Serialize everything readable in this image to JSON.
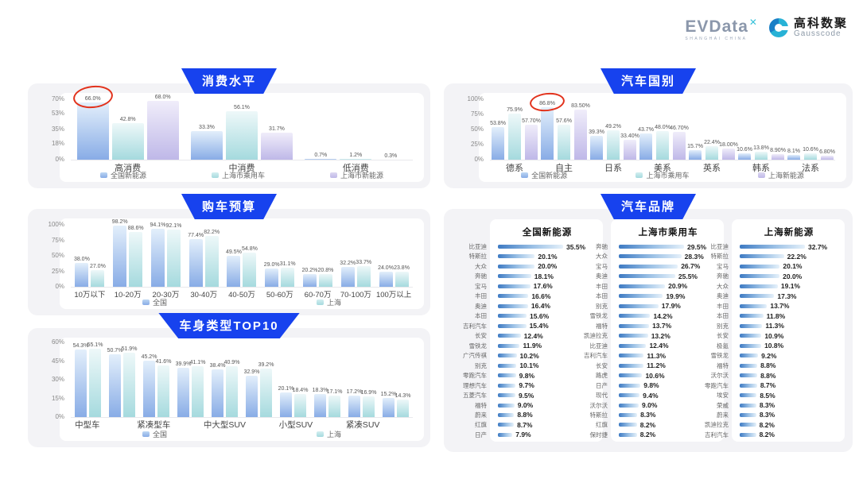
{
  "logo": {
    "evdata_text": "EVData",
    "evdata_mark": "✕",
    "evdata_sub": "SHANGHAI CHINA",
    "gausscode_cn": "高科数聚",
    "gausscode_en": "Gausscode"
  },
  "colors": {
    "banner_blue": "#1742ee",
    "series_blue": "#88ace6",
    "series_teal": "#a5dade",
    "series_purple": "#bfb8e8",
    "brand_bar_blue": "#3d7ac3",
    "annotation_red": "#e2321c",
    "panel_gray": "#f3f3f6"
  },
  "chart_data": [
    {
      "id": "consumption",
      "type": "bar",
      "title": "消费水平",
      "categories": [
        "高消费",
        "中消费",
        "低消费"
      ],
      "series": [
        {
          "name": "全国新能源",
          "color": "blue",
          "values": [
            66.0,
            33.3,
            0.7
          ],
          "labels": [
            "66.0%",
            "33.3%",
            "0.7%"
          ]
        },
        {
          "name": "上海市乘用车",
          "color": "teal",
          "values": [
            42.8,
            56.1,
            1.2
          ],
          "labels": [
            "42.8%",
            "56.1%",
            "1.2%"
          ]
        },
        {
          "name": "上海市新能源",
          "color": "purple",
          "values": [
            68.0,
            31.7,
            0.3
          ],
          "labels": [
            "68.0%",
            "31.7%",
            "0.3%"
          ]
        }
      ],
      "ymax": 70,
      "yticks": [
        {
          "v": 0,
          "label": "0%"
        },
        {
          "v": 18,
          "label": "18%"
        },
        {
          "v": 35,
          "label": "35%"
        },
        {
          "v": 53,
          "label": "53%"
        },
        {
          "v": 70,
          "label": "70%"
        }
      ],
      "grid": false,
      "legend_position": "bottom",
      "annotation": {
        "series": 0,
        "category": 0,
        "shape": "red-circle",
        "around_label": "66.0%"
      }
    },
    {
      "id": "budget",
      "type": "bar",
      "title": "购车预算",
      "categories": [
        "10万以下",
        "10-20万",
        "20-30万",
        "30-40万",
        "40-50万",
        "50-60万",
        "60-70万",
        "70-100万",
        "100万以上"
      ],
      "series": [
        {
          "name": "全国",
          "color": "blue",
          "values": [
            38.0,
            98.2,
            94.1,
            77.4,
            49.5,
            29.0,
            20.2,
            32.2,
            24.0
          ],
          "labels": [
            "38.0%",
            "98.2%",
            "94.1%",
            "77.4%",
            "49.5%",
            "29.0%",
            "20.2%",
            "32.2%",
            "24.0%"
          ]
        },
        {
          "name": "上海",
          "color": "teal",
          "values": [
            27.0,
            88.6,
            92.1,
            82.2,
            54.8,
            31.1,
            20.8,
            33.7,
            23.8
          ],
          "labels": [
            "27.0%",
            "88.6%",
            "92.1%",
            "82.2%",
            "54.8%",
            "31.1%",
            "20.8%",
            "33.7%",
            "23.8%"
          ]
        }
      ],
      "ymax": 100,
      "yticks": [
        {
          "v": 0,
          "label": "0%"
        },
        {
          "v": 25,
          "label": "25%"
        },
        {
          "v": 50,
          "label": "50%"
        },
        {
          "v": 75,
          "label": "75%"
        },
        {
          "v": 100,
          "label": "100%"
        }
      ],
      "grid": false,
      "legend_position": "bottom"
    },
    {
      "id": "bodytype",
      "type": "bar",
      "title": "车身类型TOP10",
      "categories": [
        "中型车",
        "",
        "紧凑型车",
        "",
        "中大型SUV",
        "",
        "小型SUV",
        "",
        "紧凑SUV",
        ""
      ],
      "series": [
        {
          "name": "全国",
          "color": "blue",
          "values": [
            54.3,
            50.7,
            45.2,
            39.9,
            38.4,
            32.9,
            20.1,
            18.3,
            17.2,
            15.2
          ],
          "labels": [
            "54.3%",
            "50.7%",
            "45.2%",
            "39.9%",
            "38.4%",
            "32.9%",
            "20.1%",
            "18.3%",
            "17.2%",
            "15.2%"
          ]
        },
        {
          "name": "上海",
          "color": "teal",
          "values": [
            55.1,
            51.9,
            41.6,
            41.1,
            40.9,
            39.2,
            18.4,
            17.1,
            16.9,
            14.3
          ],
          "labels": [
            "55.1%",
            "51.9%",
            "41.6%",
            "41.1%",
            "40.9%",
            "39.2%",
            "18.4%",
            "17.1%",
            "16.9%",
            "14.3%"
          ]
        }
      ],
      "ymax": 60,
      "yticks": [
        {
          "v": 0,
          "label": "0%"
        },
        {
          "v": 15,
          "label": "15%"
        },
        {
          "v": 30,
          "label": "30%"
        },
        {
          "v": 45,
          "label": "45%"
        },
        {
          "v": 60,
          "label": "60%"
        }
      ],
      "grid": false,
      "legend_position": "bottom"
    },
    {
      "id": "country",
      "type": "bar",
      "title": "汽车国别",
      "categories": [
        "德系",
        "自主",
        "日系",
        "美系",
        "英系",
        "韩系",
        "法系"
      ],
      "series": [
        {
          "name": "全国新能源",
          "color": "blue",
          "values": [
            53.8,
            86.8,
            39.3,
            43.7,
            15.7,
            10.6,
            8.1
          ],
          "labels": [
            "53.8%",
            "86.8%",
            "39.3%",
            "43.7%",
            "15.7%",
            "10.6%",
            "8.1%"
          ]
        },
        {
          "name": "上海市乘用车",
          "color": "teal",
          "values": [
            75.9,
            57.6,
            49.2,
            48.0,
            22.4,
            13.8,
            10.6
          ],
          "labels": [
            "75.9%",
            "57.6%",
            "49.2%",
            "48.0%",
            "22.4%",
            "13.8%",
            "10.6%"
          ]
        },
        {
          "name": "上海新能源",
          "color": "purple",
          "values": [
            57.7,
            83.5,
            33.4,
            46.7,
            18.0,
            8.9,
            6.8
          ],
          "labels": [
            "57.70%",
            "83.50%",
            "33.40%",
            "46.70%",
            "18.00%",
            "8.90%",
            "6.80%"
          ]
        }
      ],
      "ymax": 100,
      "yticks": [
        {
          "v": 0,
          "label": "0%"
        },
        {
          "v": 25,
          "label": "25%"
        },
        {
          "v": 50,
          "label": "50%"
        },
        {
          "v": 75,
          "label": "75%"
        },
        {
          "v": 100,
          "label": "100%"
        }
      ],
      "grid": false,
      "legend_position": "bottom",
      "annotation": {
        "series": 0,
        "category": 1,
        "shape": "red-circle",
        "around_label": "86.8%"
      }
    },
    {
      "id": "brands",
      "type": "hbar-list",
      "title": "汽车品牌",
      "lists": [
        {
          "title": "全国新能源",
          "items": [
            {
              "name": "比亚迪",
              "value": 35.5,
              "label": "35.5%"
            },
            {
              "name": "特斯拉",
              "value": 20.1,
              "label": "20.1%"
            },
            {
              "name": "大众",
              "value": 20.0,
              "label": "20.0%"
            },
            {
              "name": "奔驰",
              "value": 18.1,
              "label": "18.1%"
            },
            {
              "name": "宝马",
              "value": 17.6,
              "label": "17.6%"
            },
            {
              "name": "丰田",
              "value": 16.6,
              "label": "16.6%"
            },
            {
              "name": "奥迪",
              "value": 16.4,
              "label": "16.4%"
            },
            {
              "name": "本田",
              "value": 15.6,
              "label": "15.6%"
            },
            {
              "name": "吉利汽车",
              "value": 15.4,
              "label": "15.4%"
            },
            {
              "name": "长安",
              "value": 12.4,
              "label": "12.4%"
            },
            {
              "name": "雪铁龙",
              "value": 11.9,
              "label": "11.9%"
            },
            {
              "name": "广汽传祺",
              "value": 10.2,
              "label": "10.2%"
            },
            {
              "name": "别克",
              "value": 10.1,
              "label": "10.1%"
            },
            {
              "name": "零跑汽车",
              "value": 9.8,
              "label": "9.8%"
            },
            {
              "name": "理想汽车",
              "value": 9.7,
              "label": "9.7%"
            },
            {
              "name": "五菱汽车",
              "value": 9.5,
              "label": "9.5%"
            },
            {
              "name": "福特",
              "value": 9.0,
              "label": "9.0%"
            },
            {
              "name": "蔚来",
              "value": 8.8,
              "label": "8.8%"
            },
            {
              "name": "红旗",
              "value": 8.7,
              "label": "8.7%"
            },
            {
              "name": "日产",
              "value": 7.9,
              "label": "7.9%"
            }
          ]
        },
        {
          "title": "上海市乘用车",
          "items": [
            {
              "name": "奔驰",
              "value": 29.5,
              "label": "29.5%"
            },
            {
              "name": "大众",
              "value": 28.3,
              "label": "28.3%"
            },
            {
              "name": "宝马",
              "value": 26.7,
              "label": "26.7%"
            },
            {
              "name": "奥迪",
              "value": 25.5,
              "label": "25.5%"
            },
            {
              "name": "丰田",
              "value": 20.9,
              "label": "20.9%"
            },
            {
              "name": "本田",
              "value": 19.9,
              "label": "19.9%"
            },
            {
              "name": "别克",
              "value": 17.9,
              "label": "17.9%"
            },
            {
              "name": "雪铁龙",
              "value": 14.2,
              "label": "14.2%"
            },
            {
              "name": "福特",
              "value": 13.7,
              "label": "13.7%"
            },
            {
              "name": "凯迪拉克",
              "value": 13.2,
              "label": "13.2%"
            },
            {
              "name": "比亚迪",
              "value": 12.4,
              "label": "12.4%"
            },
            {
              "name": "吉利汽车",
              "value": 11.3,
              "label": "11.3%"
            },
            {
              "name": "长安",
              "value": 11.2,
              "label": "11.2%"
            },
            {
              "name": "路虎",
              "value": 10.6,
              "label": "10.6%"
            },
            {
              "name": "日产",
              "value": 9.8,
              "label": "9.8%"
            },
            {
              "name": "现代",
              "value": 9.4,
              "label": "9.4%"
            },
            {
              "name": "沃尔沃",
              "value": 9.0,
              "label": "9.0%"
            },
            {
              "name": "特斯拉",
              "value": 8.3,
              "label": "8.3%"
            },
            {
              "name": "红旗",
              "value": 8.2,
              "label": "8.2%"
            },
            {
              "name": "保时捷",
              "value": 8.2,
              "label": "8.2%"
            }
          ]
        },
        {
          "title": "上海新能源",
          "items": [
            {
              "name": "比亚迪",
              "value": 32.7,
              "label": "32.7%"
            },
            {
              "name": "特斯拉",
              "value": 22.2,
              "label": "22.2%"
            },
            {
              "name": "宝马",
              "value": 20.1,
              "label": "20.1%"
            },
            {
              "name": "奔驰",
              "value": 20.0,
              "label": "20.0%"
            },
            {
              "name": "大众",
              "value": 19.1,
              "label": "19.1%"
            },
            {
              "name": "奥迪",
              "value": 17.3,
              "label": "17.3%"
            },
            {
              "name": "丰田",
              "value": 13.7,
              "label": "13.7%"
            },
            {
              "name": "本田",
              "value": 11.8,
              "label": "11.8%"
            },
            {
              "name": "别克",
              "value": 11.3,
              "label": "11.3%"
            },
            {
              "name": "长安",
              "value": 10.9,
              "label": "10.9%"
            },
            {
              "name": "极氪",
              "value": 10.8,
              "label": "10.8%"
            },
            {
              "name": "雪铁龙",
              "value": 9.2,
              "label": "9.2%"
            },
            {
              "name": "福特",
              "value": 8.8,
              "label": "8.8%"
            },
            {
              "name": "沃尔沃",
              "value": 8.8,
              "label": "8.8%"
            },
            {
              "name": "零跑汽车",
              "value": 8.7,
              "label": "8.7%"
            },
            {
              "name": "埃安",
              "value": 8.5,
              "label": "8.5%"
            },
            {
              "name": "荣威",
              "value": 8.3,
              "label": "8.3%"
            },
            {
              "name": "蔚来",
              "value": 8.3,
              "label": "8.3%"
            },
            {
              "name": "凯迪拉克",
              "value": 8.2,
              "label": "8.2%"
            },
            {
              "name": "吉利汽车",
              "value": 8.2,
              "label": "8.2%"
            }
          ]
        }
      ]
    }
  ]
}
